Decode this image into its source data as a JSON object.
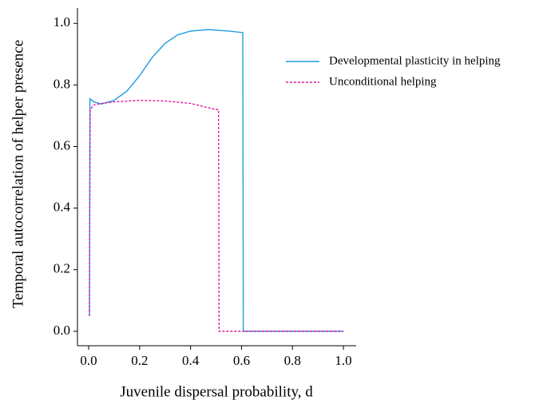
{
  "chart_data": {
    "type": "line",
    "xlabel": "Juvenile dispersal probability, d",
    "ylabel": "Temporal autocorrelation of helper presence",
    "xlim": [
      -0.044,
      1.05
    ],
    "ylim": [
      -0.047,
      1.05
    ],
    "xticks": [
      {
        "value": 0,
        "label": "0.0"
      },
      0.2,
      0.4,
      0.6,
      0.8,
      {
        "value": 1,
        "label": "1.0"
      }
    ],
    "yticks": [
      {
        "value": 0,
        "label": "0.0"
      },
      0.2,
      0.4,
      0.6,
      0.8,
      {
        "value": 1,
        "label": "1.0"
      }
    ],
    "legend": "upper right",
    "series": [
      {
        "name": "Developmental plasticity in helping",
        "color": "#1f9de0",
        "dash": "solid",
        "x": [
          0.003,
          0.005,
          0.02,
          0.05,
          0.1,
          0.15,
          0.2,
          0.25,
          0.3,
          0.35,
          0.4,
          0.47,
          0.55,
          0.605,
          0.607,
          1.0
        ],
        "values": [
          0.05,
          0.755,
          0.745,
          0.738,
          0.75,
          0.78,
          0.83,
          0.89,
          0.935,
          0.963,
          0.975,
          0.98,
          0.975,
          0.97,
          0,
          0
        ]
      },
      {
        "name": "Unconditional helping",
        "color": "#e0189c",
        "dash": "dashed",
        "x": [
          0.003,
          0.006,
          0.02,
          0.05,
          0.1,
          0.2,
          0.3,
          0.4,
          0.5,
          0.51,
          0.512,
          1.0
        ],
        "values": [
          0.05,
          0.72,
          0.735,
          0.74,
          0.745,
          0.75,
          0.748,
          0.74,
          0.72,
          0.72,
          0,
          0
        ]
      }
    ]
  }
}
